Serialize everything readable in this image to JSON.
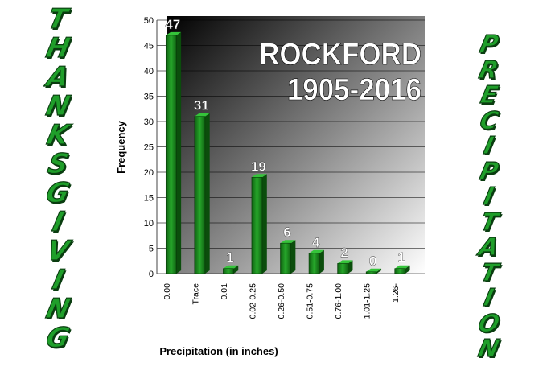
{
  "side_text": {
    "left": [
      "T",
      "H",
      "A",
      "N",
      "K",
      "S",
      "G",
      "I",
      "V",
      "I",
      "N",
      "G"
    ],
    "right": [
      "P",
      "R",
      "E",
      "C",
      "I",
      "P",
      "I",
      "T",
      "A",
      "T",
      "I",
      "O",
      "N"
    ]
  },
  "chart_data": {
    "type": "bar",
    "title": "ROCKFORD",
    "subtitle": "1905-2016",
    "xlabel": "Precipitation (in inches)",
    "ylabel": "Frequency",
    "categories": [
      "0.00",
      "Trace",
      "0.01",
      "0.02-0.25",
      "0.26-0.50",
      "0.51-0.75",
      "0.76-1.00",
      "1.01-1.25",
      "1.26-"
    ],
    "values": [
      47,
      31,
      1,
      19,
      6,
      4,
      2,
      0,
      1
    ],
    "ylim": [
      0,
      50
    ],
    "yticks": [
      0,
      5,
      10,
      15,
      20,
      25,
      30,
      35,
      40,
      45,
      50
    ],
    "grid": true,
    "bar_color": "#1a8a1a",
    "background_gradient": [
      "#000000",
      "#ffffff"
    ]
  }
}
